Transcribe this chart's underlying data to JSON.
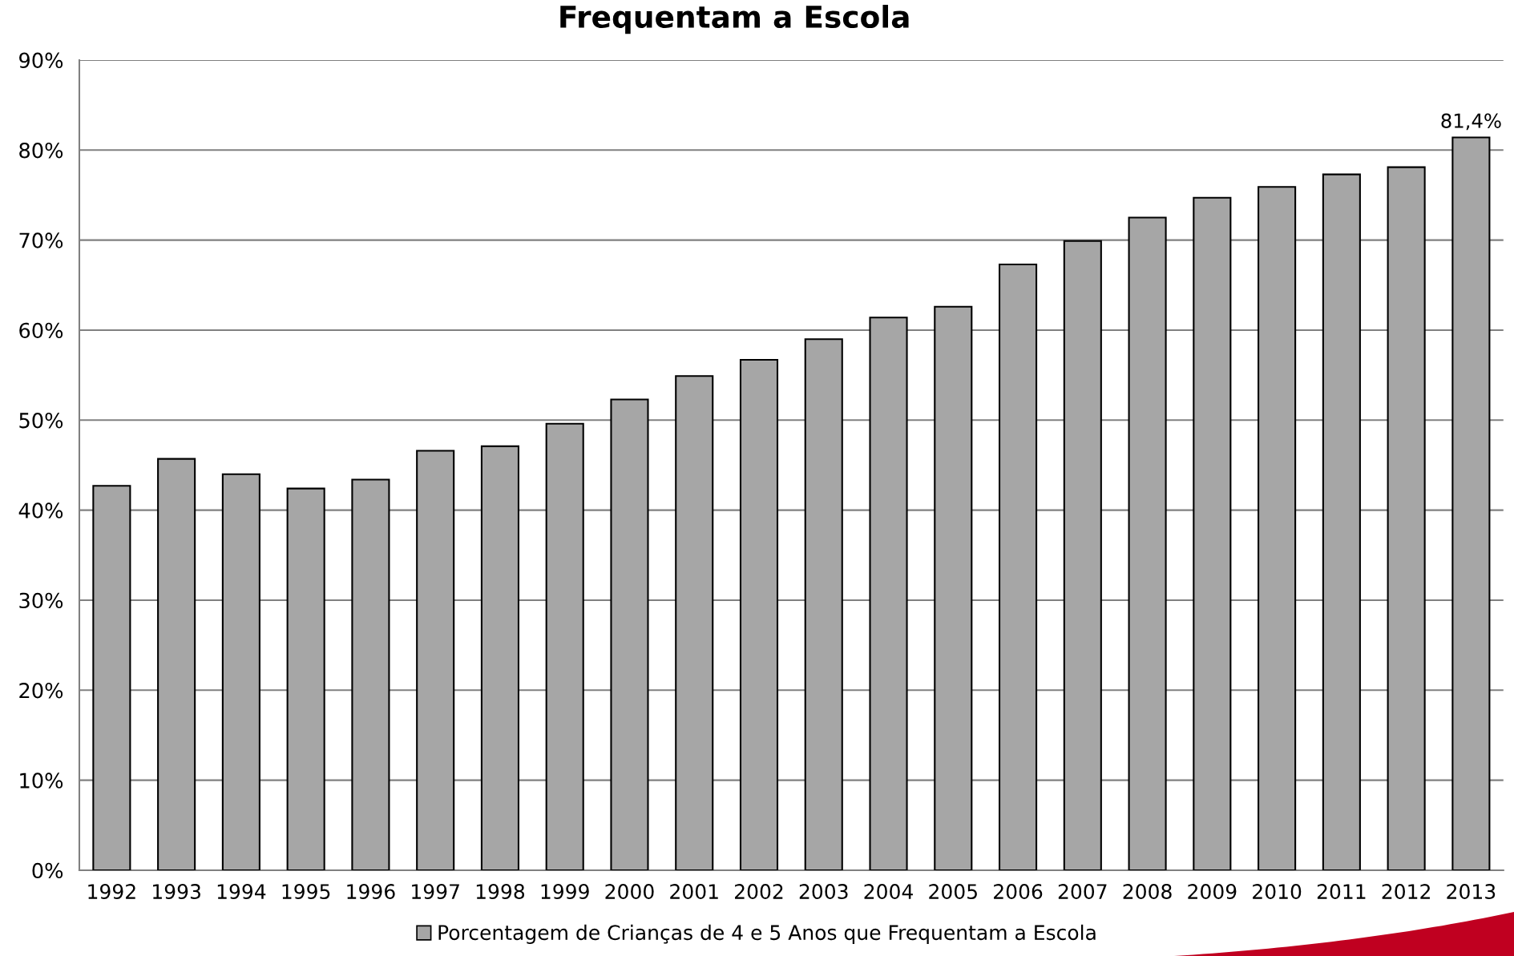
{
  "chart_data": {
    "type": "bar",
    "title": "Frequentam a Escola",
    "categories": [
      "1992",
      "1993",
      "1994",
      "1995",
      "1996",
      "1997",
      "1998",
      "1999",
      "2000",
      "2001",
      "2002",
      "2003",
      "2004",
      "2005",
      "2006",
      "2007",
      "2008",
      "2009",
      "2010",
      "2011",
      "2012",
      "2013"
    ],
    "series": [
      {
        "name": "Porcentagem de Crianças de 4 e 5 Anos que Frequentam a Escola",
        "color": "#a6a6a6",
        "values": [
          42.7,
          45.7,
          44.0,
          42.4,
          43.4,
          46.6,
          47.1,
          49.6,
          52.3,
          54.9,
          56.7,
          59.0,
          61.4,
          62.6,
          67.3,
          69.9,
          72.5,
          74.7,
          75.9,
          77.3,
          78.1,
          81.4
        ],
        "value_labels": [
          null,
          null,
          null,
          null,
          null,
          null,
          null,
          null,
          null,
          null,
          null,
          null,
          null,
          null,
          null,
          null,
          null,
          null,
          null,
          null,
          null,
          "81,4%"
        ]
      }
    ],
    "ylim": [
      0,
      90
    ],
    "yticks": [
      {
        "value": 0,
        "label": "0%"
      },
      {
        "value": 10,
        "label": "10%"
      },
      {
        "value": 20,
        "label": "20%"
      },
      {
        "value": 30,
        "label": "30%"
      },
      {
        "value": 40,
        "label": "40%"
      },
      {
        "value": 50,
        "label": "50%"
      },
      {
        "value": 60,
        "label": "60%"
      },
      {
        "value": 70,
        "label": "70%"
      },
      {
        "value": 80,
        "label": "80%"
      },
      {
        "value": 90,
        "label": "90%"
      }
    ],
    "grid": "y",
    "legend": "bottom"
  }
}
